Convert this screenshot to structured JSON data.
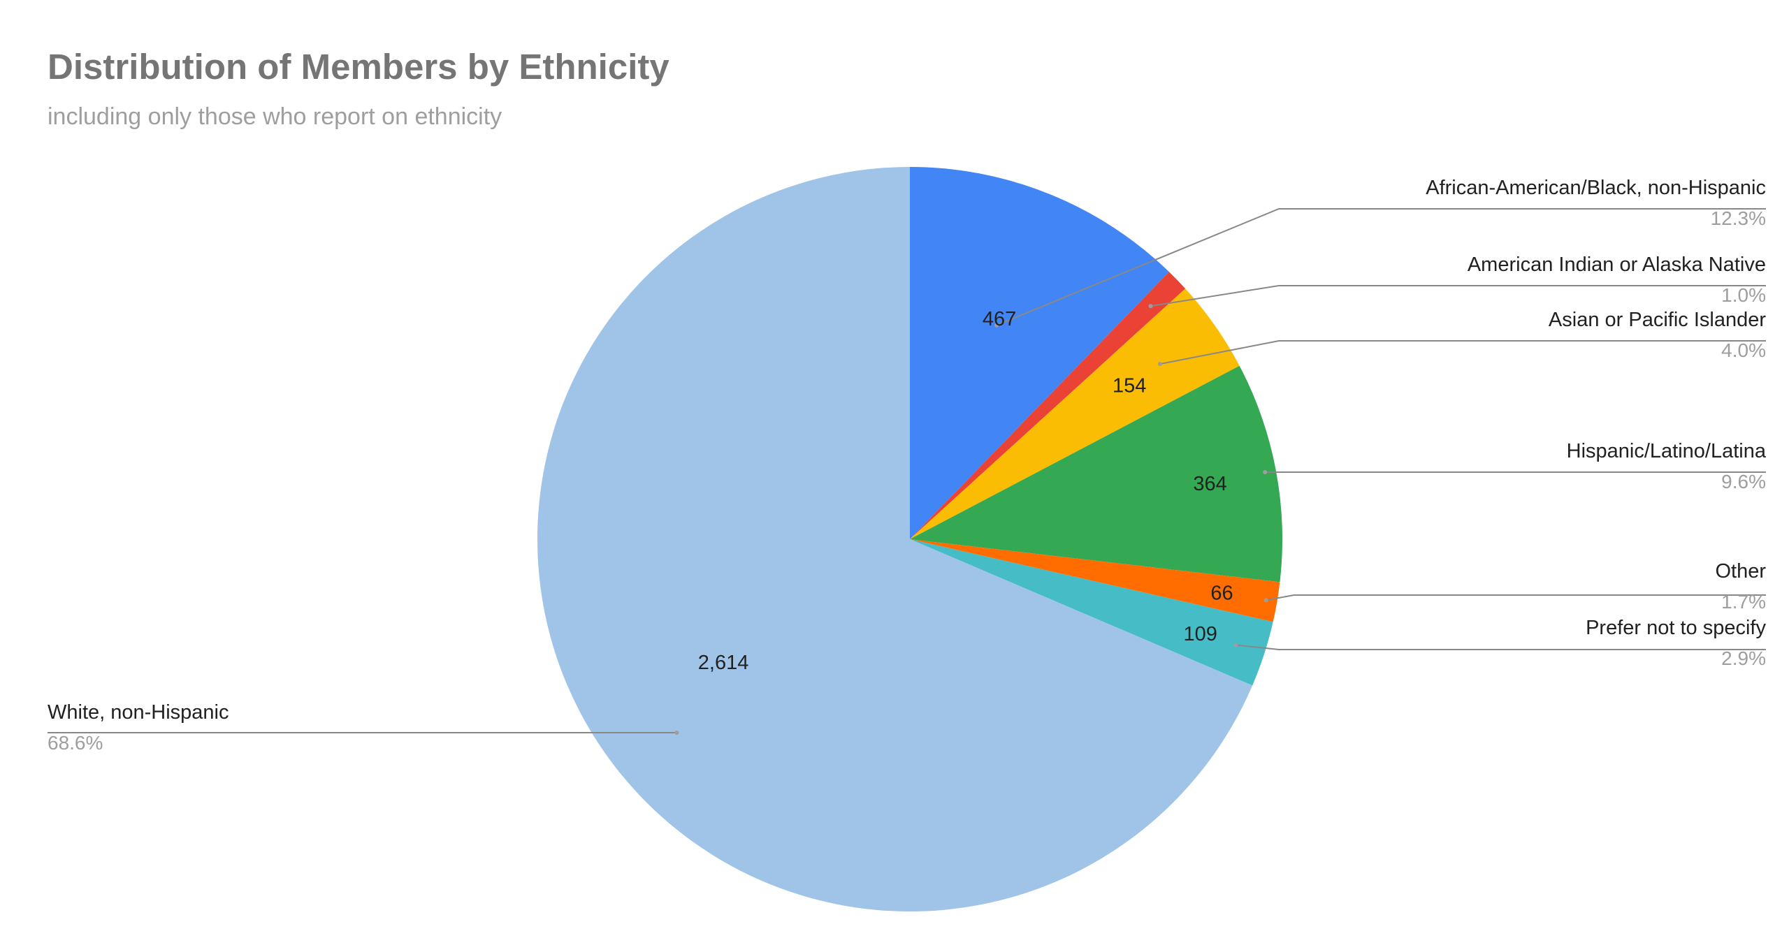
{
  "chart_data": {
    "type": "pie",
    "title": "Distribution of Members by Ethnicity",
    "subtitle": "including only those who report on ethnicity",
    "slices": [
      {
        "label": "African-American/Black, non-Hispanic",
        "value": 467,
        "value_label": "467",
        "percent_label": "12.3%",
        "color": "#4285f4"
      },
      {
        "label": "American Indian or Alaska Native",
        "value": 38,
        "value_label": "",
        "percent_label": "1.0%",
        "color": "#ea4335"
      },
      {
        "label": "Asian or Pacific Islander",
        "value": 154,
        "value_label": "154",
        "percent_label": "4.0%",
        "color": "#fbbc04"
      },
      {
        "label": "Hispanic/Latino/Latina",
        "value": 364,
        "value_label": "364",
        "percent_label": "9.6%",
        "color": "#34a853"
      },
      {
        "label": "Other",
        "value": 66,
        "value_label": "66",
        "percent_label": "1.7%",
        "color": "#ff6d01"
      },
      {
        "label": "Prefer not to specify",
        "value": 109,
        "value_label": "109",
        "percent_label": "2.9%",
        "color": "#46bdc6"
      },
      {
        "label": "White, non-Hispanic",
        "value": 2614,
        "value_label": "2,614",
        "percent_label": "68.6%",
        "color": "#a0c4e8"
      }
    ]
  }
}
